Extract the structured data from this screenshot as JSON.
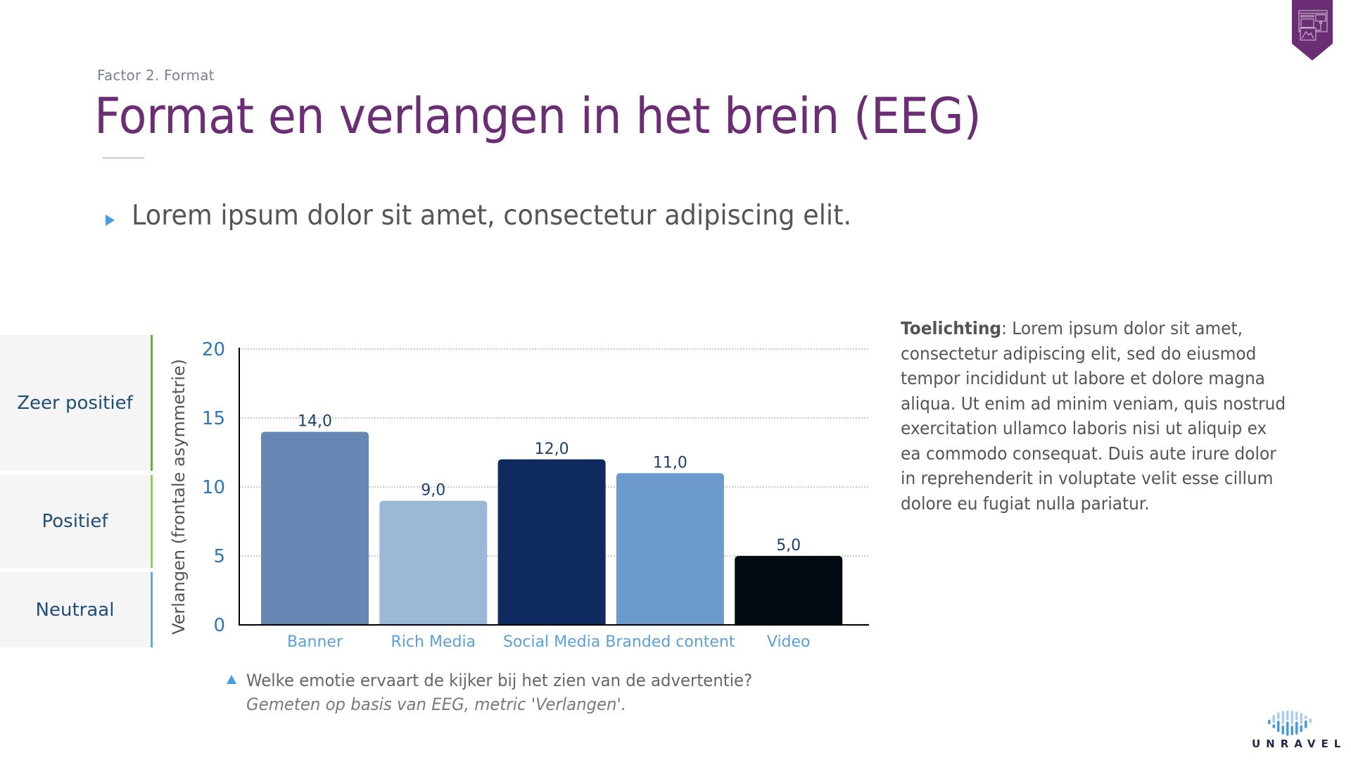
{
  "header": {
    "breadcrumb": "Factor 2. Format",
    "title": "Format en verlangen in het brein (EEG)",
    "bullet": "Lorem ipsum dolor sit amet, consectetur adipiscing elit."
  },
  "scale": {
    "items": [
      {
        "label": "Zeer positief",
        "color": "#5bb234"
      },
      {
        "label": "Positief",
        "color": "#8fd14f"
      },
      {
        "label": "Neutraal",
        "color": "#5ea8e8"
      }
    ]
  },
  "chart_data": {
    "type": "bar",
    "categories": [
      "Banner",
      "Rich Media",
      "Social Media",
      "Branded content",
      "Video"
    ],
    "values": [
      14.0,
      9.0,
      12.0,
      11.0,
      5.0
    ],
    "value_labels": [
      "14,0",
      "9,0",
      "12,0",
      "11,0",
      "5,0"
    ],
    "colors": [
      "#6786b3",
      "#9cb8d7",
      "#0f2a5e",
      "#6b9bcc",
      "#020a12"
    ],
    "ylabel": "Verlangen (frontale asymmetrie)",
    "xlabel": "",
    "ylim": [
      0,
      20
    ],
    "yticks": [
      0,
      5,
      10,
      15,
      20
    ],
    "ytick_labels": [
      "0",
      "5",
      "10",
      "15",
      "20"
    ],
    "grid": true
  },
  "footnote": {
    "question": "Welke emotie ervaart de kijker bij het zien van de advertentie?",
    "note": "Gemeten op basis van EEG, metric 'Verlangen'."
  },
  "explanation": {
    "label": "Toelichting",
    "first_line_rest": ": Lorem ipsum dolor sit amet,",
    "lines": [
      "consectetur adipiscing elit, sed do eiusmod",
      "tempor incididunt ut labore et dolore magna",
      "aliqua. Ut enim ad minim veniam, quis nostrud",
      "exercitation ullamco laboris nisi ut aliquip ex",
      "ea commodo consequat. Duis aute irure dolor",
      "in reprehenderit in voluptate velit esse cillum",
      "dolore eu fugiat nulla pariatur."
    ]
  },
  "brand": {
    "logo_text": "UNRAVEL",
    "badge_icon": "web-format-icon",
    "accent": "#6b2d73"
  }
}
